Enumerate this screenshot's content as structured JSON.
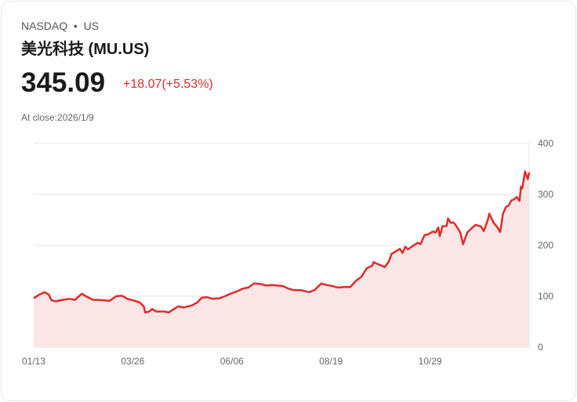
{
  "header": {
    "exchange": "NASDAQ",
    "separator": "•",
    "market": "US",
    "name": "美光科技 (MU.US)",
    "price": "345.09",
    "change": "+18.07(+5.53%)",
    "close_label": "At close:2026/1/9"
  },
  "colors": {
    "line": "#e02b2b",
    "fill": "#fbe6e6",
    "grid": "#e4e4e4"
  },
  "chart_data": {
    "type": "area",
    "title": "",
    "xlabel": "",
    "ylabel": "",
    "ylim": [
      0,
      400
    ],
    "xlim_days": [
      0,
      360
    ],
    "grid": true,
    "yticks": [
      0,
      100,
      200,
      300,
      400
    ],
    "xticks": [
      {
        "day": 0,
        "label": "01/13"
      },
      {
        "day": 72,
        "label": "03/26"
      },
      {
        "day": 144,
        "label": "06/06"
      },
      {
        "day": 216,
        "label": "08/19"
      },
      {
        "day": 288,
        "label": "10/29"
      }
    ],
    "points": [
      [
        0,
        96
      ],
      [
        4,
        103
      ],
      [
        8,
        108
      ],
      [
        11,
        103
      ],
      [
        13,
        92
      ],
      [
        16,
        90
      ],
      [
        21,
        93
      ],
      [
        26,
        95
      ],
      [
        30,
        93
      ],
      [
        35,
        105
      ],
      [
        38,
        100
      ],
      [
        43,
        93
      ],
      [
        47,
        93
      ],
      [
        51,
        92
      ],
      [
        55,
        91
      ],
      [
        60,
        100
      ],
      [
        64,
        101
      ],
      [
        68,
        95
      ],
      [
        72,
        92
      ],
      [
        77,
        88
      ],
      [
        80,
        80
      ],
      [
        81,
        68
      ],
      [
        84,
        70
      ],
      [
        86,
        75
      ],
      [
        89,
        70
      ],
      [
        95,
        70
      ],
      [
        98,
        68
      ],
      [
        102,
        75
      ],
      [
        105,
        80
      ],
      [
        109,
        78
      ],
      [
        115,
        82
      ],
      [
        119,
        88
      ],
      [
        122,
        97
      ],
      [
        126,
        98
      ],
      [
        130,
        95
      ],
      [
        135,
        96
      ],
      [
        139,
        100
      ],
      [
        143,
        105
      ],
      [
        148,
        110
      ],
      [
        152,
        115
      ],
      [
        156,
        117
      ],
      [
        160,
        125
      ],
      [
        165,
        124
      ],
      [
        169,
        121
      ],
      [
        173,
        122
      ],
      [
        177,
        121
      ],
      [
        181,
        120
      ],
      [
        185,
        115
      ],
      [
        189,
        112
      ],
      [
        194,
        112
      ],
      [
        200,
        108
      ],
      [
        204,
        112
      ],
      [
        209,
        125
      ],
      [
        213,
        122
      ],
      [
        217,
        120
      ],
      [
        221,
        117
      ],
      [
        226,
        118
      ],
      [
        230,
        118
      ],
      [
        234,
        130
      ],
      [
        238,
        138
      ],
      [
        242,
        155
      ],
      [
        246,
        160
      ],
      [
        247,
        167
      ],
      [
        250,
        163
      ],
      [
        253,
        160
      ],
      [
        255,
        157
      ],
      [
        258,
        168
      ],
      [
        260,
        183
      ],
      [
        263,
        188
      ],
      [
        266,
        193
      ],
      [
        268,
        185
      ],
      [
        270,
        197
      ],
      [
        272,
        192
      ],
      [
        275,
        198
      ],
      [
        279,
        205
      ],
      [
        281,
        202
      ],
      [
        284,
        220
      ],
      [
        287,
        222
      ],
      [
        290,
        227
      ],
      [
        292,
        225
      ],
      [
        294,
        235
      ],
      [
        295,
        218
      ],
      [
        297,
        237
      ],
      [
        300,
        238
      ],
      [
        301,
        253
      ],
      [
        303,
        244
      ],
      [
        305,
        245
      ],
      [
        307,
        238
      ],
      [
        310,
        225
      ],
      [
        312,
        202
      ],
      [
        315,
        225
      ],
      [
        318,
        233
      ],
      [
        321,
        240
      ],
      [
        325,
        237
      ],
      [
        327,
        228
      ],
      [
        330,
        250
      ],
      [
        331,
        262
      ],
      [
        334,
        245
      ],
      [
        337,
        235
      ],
      [
        339,
        226
      ],
      [
        341,
        262
      ],
      [
        343,
        275
      ],
      [
        345,
        278
      ],
      [
        347,
        288
      ],
      [
        349,
        290
      ],
      [
        351,
        295
      ],
      [
        353,
        287
      ],
      [
        354,
        315
      ],
      [
        355,
        312
      ],
      [
        357,
        345
      ],
      [
        359,
        330
      ],
      [
        360,
        343
      ]
    ]
  }
}
